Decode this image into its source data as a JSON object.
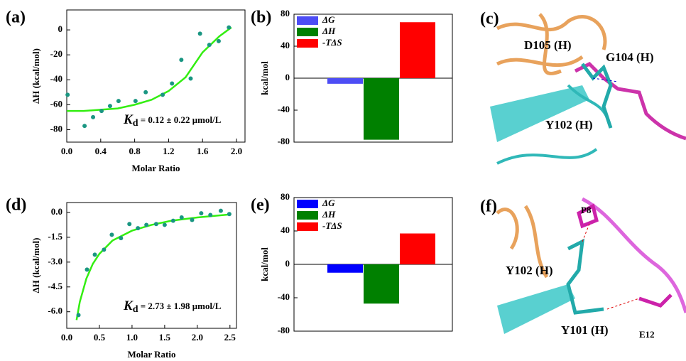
{
  "chart_data": [
    {
      "type": "scatter",
      "panel_label": "(a)",
      "x_label": "Molar Ratio",
      "y_label": "ΔH (kcal/mol)",
      "annotation": {
        "symbol": "K",
        "subscript": "d",
        "text": " = 0.12 ± 0.22 μmol/L"
      },
      "xlim": [
        0,
        2.1
      ],
      "ylim": [
        -90,
        16
      ],
      "xticks": [
        {
          "value": 0,
          "label": "0.0"
        },
        0.4,
        0.8,
        1.2,
        1.6,
        {
          "value": 2,
          "label": "2.0"
        }
      ],
      "yticks": [
        -80,
        -60,
        -40,
        -20,
        0
      ],
      "series": [
        {
          "mode": "markers",
          "color": "#1a9682",
          "x": [
            0.01,
            0.21,
            0.31,
            0.41,
            0.51,
            0.61,
            0.81,
            0.93,
            1.13,
            1.24,
            1.35,
            1.46,
            1.57,
            1.68,
            1.79,
            1.91
          ],
          "values": [
            -52,
            -77,
            -70,
            -65,
            -61,
            -57,
            -57,
            -50,
            -52,
            -43,
            -24,
            -39,
            -3,
            -12,
            -9,
            2
          ]
        },
        {
          "mode": "line",
          "color": "#33ee11",
          "x": [
            0,
            0.2,
            0.4,
            0.6,
            0.8,
            1.0,
            1.2,
            1.4,
            1.6,
            1.8,
            1.94
          ],
          "values": [
            -65,
            -65,
            -64,
            -63,
            -60,
            -56,
            -49,
            -38,
            -18,
            -5,
            2
          ]
        }
      ]
    },
    {
      "type": "bar",
      "panel_label": "(b)",
      "y_label": "kcal/mol",
      "ylim": [
        -80,
        80
      ],
      "yticks": [
        -80,
        -40,
        0,
        40,
        80
      ],
      "categories": [
        null
      ],
      "legend": "top-left",
      "series": [
        {
          "name": "ΔG",
          "color": "#4d4df5",
          "values": [
            -7
          ]
        },
        {
          "name": "ΔH",
          "color": "#008000",
          "values": [
            -77
          ]
        },
        {
          "name": "-TΔS",
          "color": "#ff0000",
          "values": [
            70
          ]
        }
      ]
    },
    {
      "type": "scatter",
      "panel_label": "(d)",
      "x_label": "Molar Ratio",
      "y_label": "ΔH (kcal/mol)",
      "annotation": {
        "symbol": "K",
        "subscript": "d",
        "text": " = 2.73 ± 1.98 μmol/L"
      },
      "xlim": [
        0,
        2.6
      ],
      "ylim": [
        -7,
        0.6
      ],
      "xticks": [
        {
          "value": 0,
          "label": "0.0"
        },
        0.5,
        {
          "value": 1,
          "label": "1.0"
        },
        1.5,
        {
          "value": 2,
          "label": "2.0"
        },
        2.5
      ],
      "yticks": [
        {
          "value": -6,
          "label": "-6.0"
        },
        -4.5,
        {
          "value": -3,
          "label": "-3.0"
        },
        -1.5,
        {
          "value": 0,
          "label": "0.0"
        }
      ],
      "series": [
        {
          "mode": "markers",
          "color": "#1a9682",
          "x": [
            0.18,
            0.31,
            0.43,
            0.57,
            0.69,
            0.83,
            0.96,
            1.09,
            1.22,
            1.37,
            1.5,
            1.63,
            1.76,
            1.92,
            2.06,
            2.2,
            2.36,
            2.49
          ],
          "values": [
            -6.2,
            -3.45,
            -2.55,
            -2.25,
            -1.35,
            -1.55,
            -0.7,
            -0.95,
            -0.75,
            -0.7,
            -0.75,
            -0.5,
            -0.3,
            -0.45,
            -0.05,
            -0.15,
            0.1,
            -0.1
          ]
        },
        {
          "mode": "line",
          "color": "#33ee11",
          "x": [
            0.15,
            0.2,
            0.3,
            0.4,
            0.5,
            0.7,
            1.0,
            1.3,
            1.6,
            2.0,
            2.5
          ],
          "values": [
            -6.5,
            -5.4,
            -4.0,
            -3.1,
            -2.5,
            -1.7,
            -1.1,
            -0.75,
            -0.5,
            -0.3,
            -0.12
          ]
        }
      ]
    },
    {
      "type": "bar",
      "panel_label": "(e)",
      "y_label": "kcal/mol",
      "ylim": [
        -80,
        80
      ],
      "yticks": [
        -80,
        -40,
        0,
        40,
        80
      ],
      "categories": [
        null
      ],
      "legend": "top-left",
      "series": [
        {
          "name": "ΔG",
          "color": "#0000ff",
          "values": [
            -10
          ]
        },
        {
          "name": "ΔH",
          "color": "#008000",
          "values": [
            -47
          ]
        },
        {
          "name": "-TΔS",
          "color": "#ff0000",
          "values": [
            37
          ]
        }
      ]
    }
  ],
  "structures": [
    {
      "panel_label": "(c)",
      "residues": [
        "D105 (H)",
        "G104 (H)",
        "Y102 (H)"
      ]
    },
    {
      "panel_label": "(f)",
      "residues": [
        "Y102 (H)",
        "Y101 (H)"
      ],
      "peptide_residues": [
        "P8",
        "E12"
      ]
    }
  ]
}
